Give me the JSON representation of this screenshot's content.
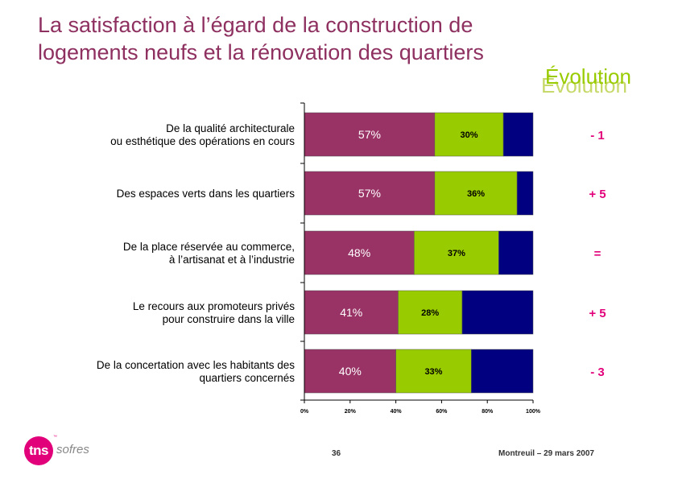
{
  "title": {
    "line1": "La satisfaction à l’égard de la construction de",
    "line2": "logements neufs et la rénovation des quartiers"
  },
  "evolution_header": "Évolution",
  "chart_data": {
    "type": "bar",
    "orientation": "horizontal",
    "stacked": true,
    "categories": [
      [
        "De la qualité architecturale",
        "ou esthétique des opérations en cours"
      ],
      [
        "Des espaces verts dans les quartiers"
      ],
      [
        "De la place réservée au commerce,",
        "à l’artisanat et à l’industrie"
      ],
      [
        "Le recours aux promoteurs privés",
        "pour construire dans la ville"
      ],
      [
        "De la concertation avec les habitants des",
        "quartiers concernés"
      ]
    ],
    "series": [
      {
        "values": [
          57,
          57,
          48,
          41,
          40
        ],
        "color": "#993366",
        "labels": [
          "57%",
          "57%",
          "48%",
          "41%",
          "40%"
        ]
      },
      {
        "values": [
          30,
          36,
          37,
          28,
          33
        ],
        "color": "#99cc00",
        "labels": [
          "30%",
          "36%",
          "37%",
          "28%",
          "33%"
        ]
      },
      {
        "values": [
          13,
          7,
          15,
          31,
          27
        ],
        "color": "#000080",
        "labels": [
          "",
          "",
          "",
          "",
          ""
        ]
      }
    ],
    "evolution": [
      "- 1",
      "+ 5",
      "=",
      "+ 5",
      "- 3"
    ],
    "xlim": [
      0,
      100
    ],
    "xticks": [
      "0%",
      "20%",
      "40%",
      "60%",
      "80%",
      "100%"
    ],
    "grid": false,
    "colors": {
      "evolution_text": "#e2007a",
      "title": "#8e3060"
    }
  },
  "footer": {
    "page": "36",
    "date": "Montreuil – 29 mars 2007"
  },
  "logo": {
    "mark": "tns",
    "tm": "™",
    "text": "sofres"
  }
}
